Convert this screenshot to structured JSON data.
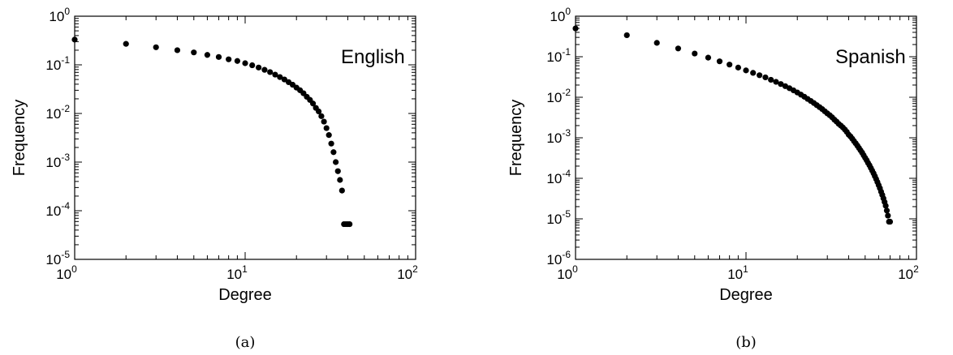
{
  "chart_data": [
    {
      "type": "scatter",
      "caption": "(a)",
      "annotation": "English",
      "xlabel": "Degree",
      "ylabel": "Frequency",
      "xscale": "log",
      "yscale": "log",
      "xlim": [
        1,
        100
      ],
      "ylim": [
        1e-05,
        1
      ],
      "xticks": [
        {
          "base": "10",
          "exp": "0"
        },
        {
          "base": "10",
          "exp": "1"
        },
        {
          "base": "10",
          "exp": "2"
        }
      ],
      "yticks": [
        {
          "base": "10",
          "exp": "-5"
        },
        {
          "base": "10",
          "exp": "-4"
        },
        {
          "base": "10",
          "exp": "-3"
        },
        {
          "base": "10",
          "exp": "-2"
        },
        {
          "base": "10",
          "exp": "-1"
        },
        {
          "base": "10",
          "exp": "0"
        }
      ],
      "legend": "top-right",
      "series": [
        {
          "points": [
            [
              1,
              0.33
            ],
            [
              2,
              0.27
            ],
            [
              3,
              0.23
            ],
            [
              4,
              0.2
            ],
            [
              5,
              0.18
            ],
            [
              6,
              0.16
            ],
            [
              7,
              0.145
            ],
            [
              8,
              0.13
            ],
            [
              9,
              0.12
            ],
            [
              10,
              0.108
            ],
            [
              11,
              0.098
            ],
            [
              12,
              0.088
            ],
            [
              13,
              0.079
            ],
            [
              14,
              0.071
            ],
            [
              15,
              0.063
            ],
            [
              16,
              0.056
            ],
            [
              17,
              0.05
            ],
            [
              18,
              0.044
            ],
            [
              19,
              0.039
            ],
            [
              20,
              0.034
            ],
            [
              21,
              0.03
            ],
            [
              22,
              0.026
            ],
            [
              23,
              0.022
            ],
            [
              24,
              0.019
            ],
            [
              25,
              0.016
            ],
            [
              26,
              0.013
            ],
            [
              27,
              0.011
            ],
            [
              28,
              0.0088
            ],
            [
              29,
              0.0068
            ],
            [
              30,
              0.005
            ],
            [
              31,
              0.0036
            ],
            [
              32,
              0.0024
            ],
            [
              33,
              0.0016
            ],
            [
              34,
              0.001
            ],
            [
              35,
              0.00065
            ],
            [
              36,
              0.00043
            ],
            [
              37,
              0.00026
            ],
            [
              38,
              5.3e-05
            ],
            [
              39,
              5.3e-05
            ],
            [
              40,
              5.3e-05
            ],
            [
              41,
              5.3e-05
            ]
          ]
        }
      ]
    },
    {
      "type": "scatter",
      "caption": "(b)",
      "annotation": "Spanish",
      "xlabel": "Degree",
      "ylabel": "Frequency",
      "xscale": "log",
      "yscale": "log",
      "xlim": [
        1,
        100
      ],
      "ylim": [
        1e-06,
        1
      ],
      "xticks": [
        {
          "base": "10",
          "exp": "0"
        },
        {
          "base": "10",
          "exp": "1"
        },
        {
          "base": "10",
          "exp": "2"
        }
      ],
      "yticks": [
        {
          "base": "10",
          "exp": "-6"
        },
        {
          "base": "10",
          "exp": "-5"
        },
        {
          "base": "10",
          "exp": "-4"
        },
        {
          "base": "10",
          "exp": "-3"
        },
        {
          "base": "10",
          "exp": "-2"
        },
        {
          "base": "10",
          "exp": "-1"
        },
        {
          "base": "10",
          "exp": "0"
        }
      ],
      "legend": "top-right",
      "series": [
        {
          "points": [
            [
              1,
              0.5
            ],
            [
              2,
              0.34
            ],
            [
              3,
              0.22
            ],
            [
              4,
              0.16
            ],
            [
              5,
              0.12
            ],
            [
              6,
              0.095
            ],
            [
              7,
              0.077
            ],
            [
              8,
              0.064
            ],
            [
              9,
              0.054
            ],
            [
              10,
              0.046
            ],
            [
              11,
              0.04
            ],
            [
              12,
              0.035
            ],
            [
              13,
              0.031
            ],
            [
              14,
              0.027
            ],
            [
              15,
              0.024
            ],
            [
              16,
              0.0212
            ],
            [
              17,
              0.0188
            ],
            [
              18,
              0.0167
            ],
            [
              19,
              0.0148
            ],
            [
              20,
              0.0131
            ],
            [
              21,
              0.0116
            ],
            [
              22,
              0.0103
            ],
            [
              23,
              0.0091
            ],
            [
              24,
              0.0081
            ],
            [
              25,
              0.0072
            ],
            [
              26,
              0.0064
            ],
            [
              27,
              0.0057
            ],
            [
              28,
              0.0051
            ],
            [
              29,
              0.0045
            ],
            [
              30,
              0.004
            ],
            [
              31,
              0.0036
            ],
            [
              32,
              0.0032
            ],
            [
              33,
              0.0028
            ],
            [
              34,
              0.0025
            ],
            [
              35,
              0.0022
            ],
            [
              36,
              0.002
            ],
            [
              37,
              0.0018
            ],
            [
              38,
              0.0016
            ],
            [
              39,
              0.0014
            ],
            [
              40,
              0.0012
            ],
            [
              41,
              0.00108
            ],
            [
              42,
              0.00095
            ],
            [
              43,
              0.00083
            ],
            [
              44,
              0.00073
            ],
            [
              45,
              0.00064
            ],
            [
              46,
              0.00056
            ],
            [
              47,
              0.00049
            ],
            [
              48,
              0.00043
            ],
            [
              49,
              0.00037
            ],
            [
              50,
              0.00032
            ],
            [
              51,
              0.00028
            ],
            [
              52,
              0.00024
            ],
            [
              53,
              0.00021
            ],
            [
              54,
              0.00018
            ],
            [
              55,
              0.000155
            ],
            [
              56,
              0.000133
            ],
            [
              57,
              0.000113
            ],
            [
              58,
              9.6e-05
            ],
            [
              59,
              8.1e-05
            ],
            [
              60,
              6.8e-05
            ],
            [
              61,
              5.7e-05
            ],
            [
              62,
              4.7e-05
            ],
            [
              63,
              3.9e-05
            ],
            [
              64,
              3.2e-05
            ],
            [
              65,
              2.6e-05
            ],
            [
              66,
              2.1e-05
            ],
            [
              67,
              1.6e-05
            ],
            [
              68,
              1.2e-05
            ],
            [
              69,
              8.5e-06
            ],
            [
              70,
              8.5e-06
            ]
          ]
        }
      ]
    }
  ]
}
